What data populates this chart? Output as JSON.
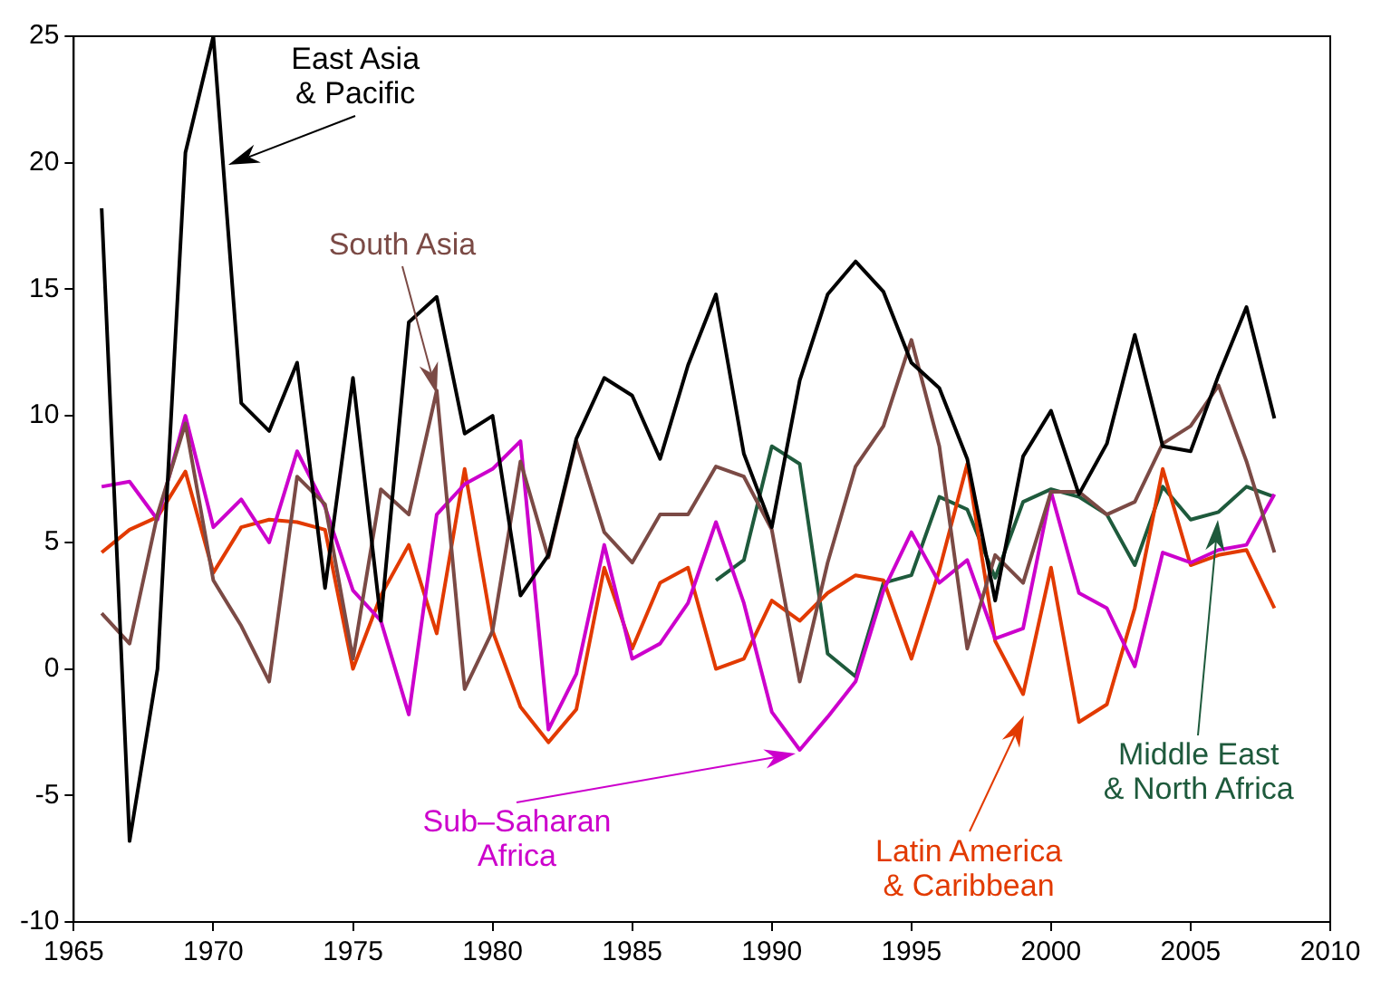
{
  "chart_data": {
    "type": "line",
    "x": [
      1966,
      1967,
      1968,
      1969,
      1970,
      1971,
      1972,
      1973,
      1974,
      1975,
      1976,
      1977,
      1978,
      1979,
      1980,
      1981,
      1982,
      1983,
      1984,
      1985,
      1986,
      1987,
      1988,
      1989,
      1990,
      1991,
      1992,
      1993,
      1994,
      1995,
      1996,
      1997,
      1998,
      1999,
      2000,
      2001,
      2002,
      2003,
      2004,
      2005,
      2006,
      2007,
      2008
    ],
    "series": [
      {
        "name": "East Asia & Pacific",
        "color": "#000000",
        "values": [
          18.2,
          -6.8,
          0,
          20.4,
          25,
          10.5,
          9.4,
          12.1,
          3.2,
          11.5,
          1.9,
          13.7,
          14.7,
          9.3,
          10,
          2.9,
          4.5,
          9.1,
          11.5,
          10.8,
          8.3,
          12,
          14.8,
          8.5,
          5.6,
          11.4,
          14.8,
          16.1,
          14.9,
          12.1,
          11.1,
          8.3,
          2.7,
          8.4,
          10.2,
          6.9,
          8.9,
          13.2,
          8.8,
          8.6,
          11.6,
          14.3,
          9.9
        ]
      },
      {
        "name": "South Asia",
        "color": "#7b4a45",
        "values": [
          2.2,
          1.0,
          6.1,
          9.7,
          3.5,
          1.7,
          -0.5,
          7.6,
          6.5,
          0.4,
          7.1,
          6.1,
          11.0,
          -0.8,
          1.5,
          8.2,
          4.4,
          9.0,
          5.4,
          4.2,
          6.1,
          6.1,
          8.0,
          7.6,
          5.5,
          -0.5,
          4.2,
          8.0,
          9.6,
          13.0,
          8.8,
          0.8,
          4.5,
          3.4,
          7.0,
          7.0,
          6.1,
          6.6,
          8.9,
          9.6,
          11.2,
          8.2,
          4.6
        ]
      },
      {
        "name": "Sub–Saharan Africa",
        "color": "#cc00cc",
        "values": [
          7.2,
          7.4,
          5.9,
          10,
          5.6,
          6.7,
          5.0,
          8.6,
          6.4,
          3.1,
          1.9,
          -1.8,
          6.1,
          7.3,
          7.9,
          9.0,
          -2.4,
          -0.2,
          4.9,
          0.4,
          1.0,
          2.6,
          5.8,
          2.6,
          -1.7,
          -3.2,
          -1.9,
          -0.5,
          3.1,
          5.4,
          3.4,
          4.3,
          1.2,
          1.6,
          7.0,
          3.0,
          2.4,
          0.1,
          4.6,
          4.2,
          4.7,
          4.9,
          6.9
        ]
      },
      {
        "name": "Latin America & Caribbean",
        "color": "#e23a00",
        "values": [
          4.6,
          5.5,
          6.0,
          7.8,
          3.8,
          5.6,
          5.9,
          5.8,
          5.5,
          0.0,
          2.9,
          4.9,
          1.4,
          7.9,
          1.5,
          -1.5,
          -2.9,
          -1.6,
          4.0,
          0.8,
          3.4,
          4.0,
          0.0,
          0.4,
          2.7,
          1.9,
          3.0,
          3.7,
          3.5,
          0.4,
          3.9,
          8.1,
          1.1,
          -1.0,
          4.0,
          -2.1,
          -1.4,
          2.4,
          7.9,
          4.1,
          4.5,
          4.7,
          2.4
        ]
      },
      {
        "name": "Middle East & North Africa",
        "color": "#1e5a3c",
        "values": [
          null,
          null,
          null,
          null,
          null,
          null,
          null,
          null,
          null,
          null,
          null,
          null,
          null,
          null,
          null,
          null,
          null,
          null,
          null,
          null,
          null,
          null,
          3.5,
          4.3,
          8.8,
          8.1,
          0.6,
          -0.3,
          3.4,
          3.7,
          6.8,
          6.3,
          3.6,
          6.6,
          7.1,
          6.8,
          6.1,
          4.1,
          7.2,
          5.9,
          6.2,
          7.2,
          6.8
        ]
      }
    ],
    "xlim": [
      1965,
      2010
    ],
    "xticks": [
      1965,
      1970,
      1975,
      1980,
      1985,
      1990,
      1995,
      2000,
      2005,
      2010
    ],
    "ylim": [
      -10,
      25
    ],
    "yticks": [
      -10,
      -5,
      0,
      5,
      10,
      15,
      20,
      25
    ],
    "grid": false,
    "legend": false,
    "marker": "none",
    "line_style": "solid"
  }
}
